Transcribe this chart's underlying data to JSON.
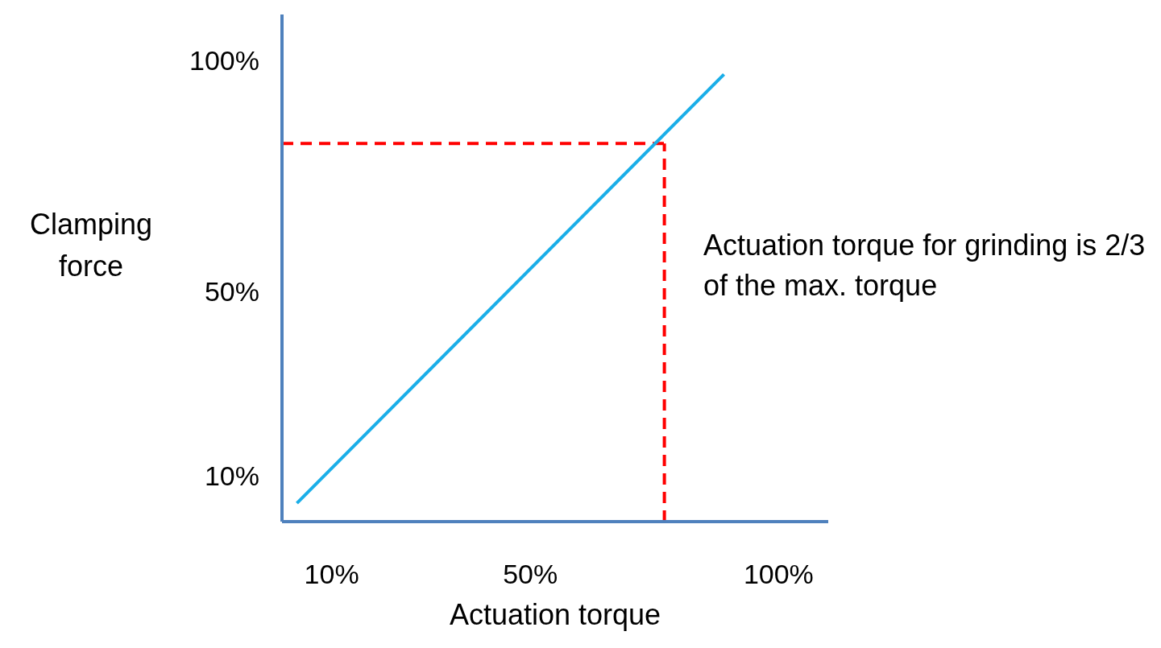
{
  "chart_data": {
    "type": "line",
    "xlabel": "Actuation torque",
    "ylabel": "Clamping force",
    "xlim": [
      0,
      110
    ],
    "ylim": [
      0,
      110
    ],
    "xticks": [
      {
        "value": 10,
        "label": "10%"
      },
      {
        "value": 50,
        "label": "50%"
      },
      {
        "value": 100,
        "label": "100%"
      }
    ],
    "yticks": [
      {
        "value": 10,
        "label": "10%"
      },
      {
        "value": 50,
        "label": "50%"
      },
      {
        "value": 100,
        "label": "100%"
      }
    ],
    "series": [
      {
        "color": "#1aaee8",
        "x": [
          3,
          89
        ],
        "values": [
          4,
          97
        ]
      }
    ],
    "ref_lines": [
      {
        "axis": "x",
        "value": 77,
        "color": "#ff0000",
        "line_style": "dashed"
      },
      {
        "axis": "y",
        "value": 82,
        "color": "#ff0000",
        "line_style": "dashed"
      }
    ],
    "annotations": [
      "Actuation torque for grinding is 2/3 of the max. torque"
    ],
    "grid": false,
    "legend": false,
    "marker": "none",
    "line_style": "solid"
  }
}
